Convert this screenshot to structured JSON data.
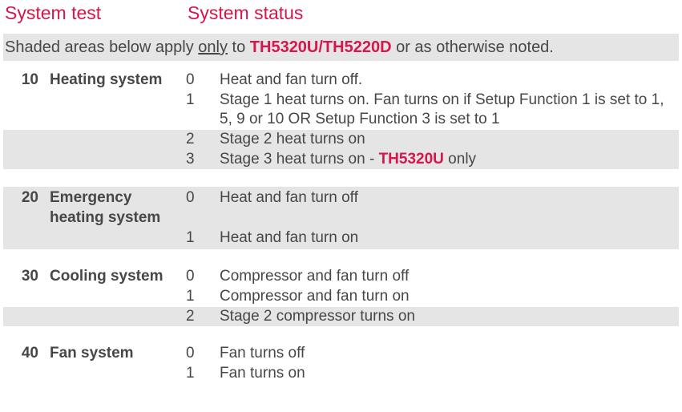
{
  "colors": {
    "accent": "#d4174d",
    "text": "#474747",
    "shaded_bg": "#e5e5e5",
    "page_bg": "#ffffff"
  },
  "header": {
    "col1": "System test",
    "col2": "System status"
  },
  "note": {
    "prefix": "Shaded areas below apply ",
    "only": "only",
    "mid": " to ",
    "models": "TH5320U/TH5220D",
    "suffix": " or as otherwise noted."
  },
  "sections": [
    {
      "num": "10",
      "name": "Heating system",
      "rows": [
        {
          "status": "0",
          "desc": "Heat and fan turn off.",
          "shaded": false
        },
        {
          "status": "1",
          "desc": "Stage 1 heat turns on. Fan turns on if Setup Function 1 is set to 1, 5, 9 or 10 OR Setup Function 3 is set to 1",
          "shaded": false
        },
        {
          "status": "2",
          "desc": "Stage 2 heat turns on",
          "shaded": true
        },
        {
          "status": "3",
          "desc_prefix": "Stage 3 heat turns on - ",
          "model": "TH5320U",
          "desc_suffix": " only",
          "shaded": true
        }
      ]
    },
    {
      "num": "20",
      "name": "Emergency heating system",
      "all_shaded": true,
      "rows": [
        {
          "status": "0",
          "desc": "Heat and fan turn off"
        },
        {
          "status": "1",
          "desc": "Heat and fan turn on"
        }
      ]
    },
    {
      "num": "30",
      "name": "Cooling system",
      "rows": [
        {
          "status": "0",
          "desc": "Compressor and fan turn off",
          "shaded": false
        },
        {
          "status": "1",
          "desc": "Compressor and fan turn on",
          "shaded": false
        },
        {
          "status": "2",
          "desc": "Stage 2 compressor turns on",
          "shaded": true
        }
      ]
    },
    {
      "num": "40",
      "name": "Fan system",
      "rows": [
        {
          "status": "0",
          "desc": "Fan turns off",
          "shaded": false
        },
        {
          "status": "1",
          "desc": "Fan turns on",
          "shaded": false
        }
      ]
    }
  ]
}
